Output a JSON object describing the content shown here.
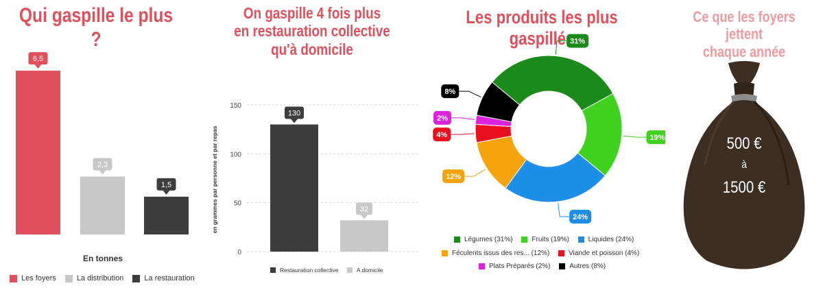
{
  "panel1": {
    "title": "Qui gaspille le plus ?",
    "title_color": "#e0505c",
    "xlabel": "En tonnes"
  },
  "panel2": {
    "title_lines": [
      "On gaspille 4 fois plus",
      "en restauration collective",
      "qu'à domicile"
    ],
    "title_color": "#e0505c",
    "ylabel": "en grammes par personne et par repas"
  },
  "panel3": {
    "title": "Les produits les plus gaspillés",
    "title_color": "#e0505c"
  },
  "panel4": {
    "title_lines": [
      "Ce que les foyers jettent",
      "chaque année"
    ],
    "title_color": "#f09aa0",
    "bag_line1": "500 €",
    "bag_line2": "à",
    "bag_line3": "1500 €"
  },
  "chart_data": [
    {
      "type": "bar",
      "categories": [
        "Les foyers",
        "La distribution",
        "La restauration"
      ],
      "values": [
        6.5,
        2.3,
        1.5
      ],
      "value_labels": [
        "6,5",
        "2,3",
        "1,5"
      ],
      "colors": [
        "#e0505c",
        "#c8c8c8",
        "#3d3d3d"
      ],
      "xlabel": "En tonnes",
      "legend": "bottom",
      "ylim": [
        0,
        7.4
      ]
    },
    {
      "type": "bar",
      "categories": [
        "Restauration collective",
        "A domicile"
      ],
      "values": [
        130,
        32
      ],
      "value_labels": [
        "130",
        "32"
      ],
      "colors": [
        "#3d3d3d",
        "#c8c8c8"
      ],
      "ylabel": "en grammes par personne et par repas",
      "yticks": [
        "0",
        "50",
        "100",
        "150"
      ],
      "ylim": [
        0,
        150
      ],
      "grid": true,
      "legend": "bottom"
    },
    {
      "type": "pie",
      "style": "donut",
      "categories": [
        "Légumes (31%)",
        "Fruits (19%)",
        "Liquides (24%)",
        "Féculents issus des res... (12%)",
        "Viande et poisson (4%)",
        "Plats Préparés (2%)",
        "Autres (8%)"
      ],
      "values": [
        31,
        19,
        24,
        12,
        4,
        2,
        8
      ],
      "value_labels": [
        "31%",
        "19%",
        "24%",
        "12%",
        "4%",
        "2%",
        "8%"
      ],
      "colors": [
        "#1a8a1a",
        "#3fd21e",
        "#1e8fe6",
        "#f5a40e",
        "#e8101e",
        "#dd22dd",
        "#000000"
      ],
      "legend": "bottom"
    }
  ]
}
